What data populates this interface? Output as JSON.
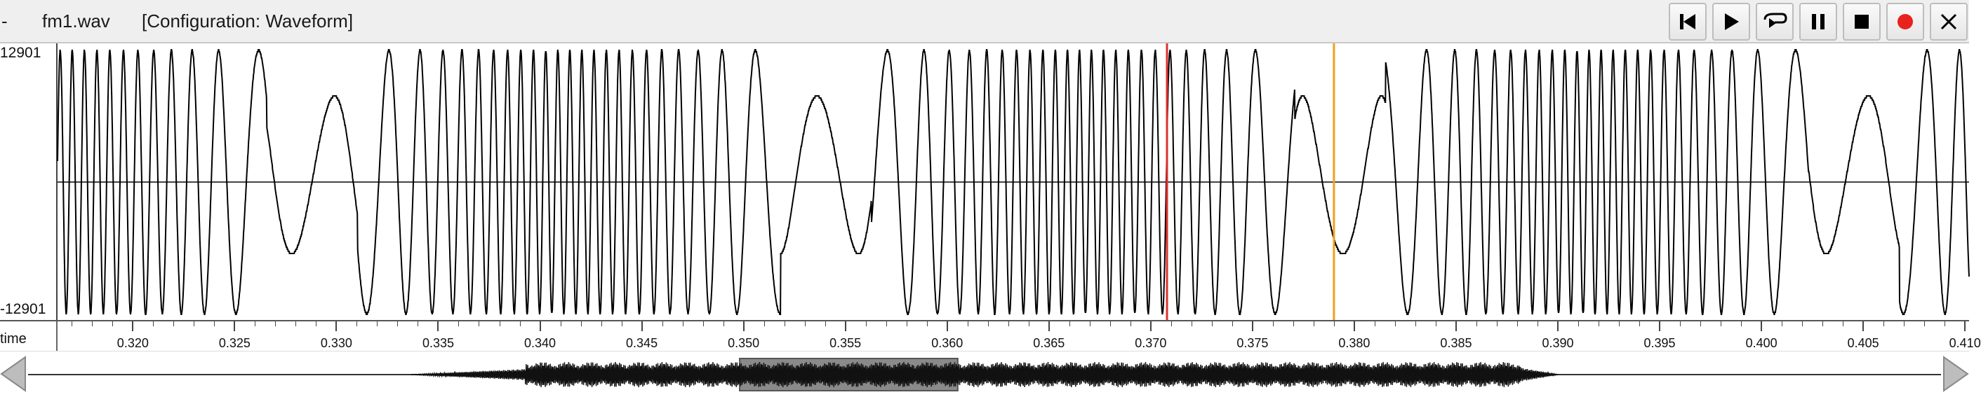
{
  "window": {
    "dash": "-",
    "filename": "fm1.wav",
    "configuration": "[Configuration: Waveform]"
  },
  "controls": [
    {
      "name": "skip-to-start-button",
      "icon": "skip-to-start-icon"
    },
    {
      "name": "play-button",
      "icon": "play-icon"
    },
    {
      "name": "loop-play-button",
      "icon": "loop-play-icon"
    },
    {
      "name": "pause-button",
      "icon": "pause-icon"
    },
    {
      "name": "stop-button",
      "icon": "stop-icon"
    },
    {
      "name": "record-button",
      "icon": "record-icon"
    },
    {
      "name": "close-button",
      "icon": "close-icon"
    }
  ],
  "waveform": {
    "y_max_label": "12901",
    "y_min_label": "-12901",
    "time_start": 0.3163,
    "time_end": 0.4102,
    "playhead_time": 0.3708,
    "cursor_time": 0.379,
    "playhead_color": "#e03030",
    "cursor_color": "#f0a020"
  },
  "axis": {
    "label": "time",
    "ticks": [
      "0.320",
      "0.325",
      "0.330",
      "0.335",
      "0.340",
      "0.345",
      "0.350",
      "0.355",
      "0.360",
      "0.365",
      "0.370",
      "0.375",
      "0.380",
      "0.385",
      "0.390",
      "0.395",
      "0.400",
      "0.405",
      "0.410"
    ]
  },
  "overview": {
    "visible_window_start_fraction": 0.372,
    "visible_window_end_fraction": 0.486
  }
}
